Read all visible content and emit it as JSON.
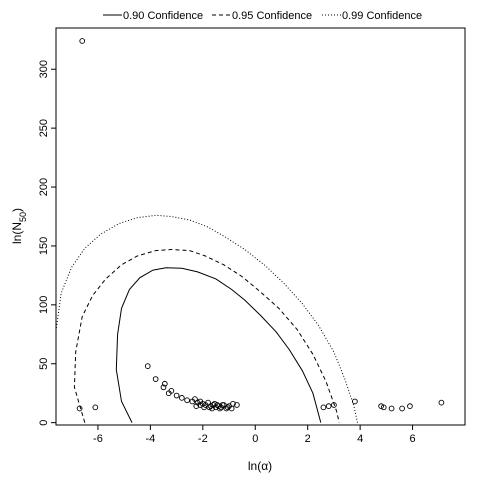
{
  "chart_data": {
    "type": "scatter",
    "xlabel": "ln(α)",
    "ylabel_main": "ln(N",
    "ylabel_sub": "50",
    "ylabel_close": ")",
    "xlim": [
      -7.6,
      8.0
    ],
    "ylim": [
      -2,
      335
    ],
    "x_ticks": [
      -6,
      -4,
      -2,
      0,
      2,
      4,
      6
    ],
    "x_tick_labels": [
      "-6",
      "-4",
      "-2",
      "0",
      "2",
      "4",
      "6"
    ],
    "y_ticks": [
      0,
      50,
      100,
      150,
      200,
      250,
      300
    ],
    "y_tick_labels": [
      "0",
      "50",
      "100",
      "150",
      "200",
      "250",
      "300"
    ],
    "legend": {
      "placement": "top",
      "entries": [
        {
          "label": "0.90 Confidence",
          "style": "solid"
        },
        {
          "label": "0.95 Confidence",
          "style": "dashed"
        },
        {
          "label": "0.99 Confidence",
          "style": "dotted"
        }
      ]
    },
    "series": [
      {
        "name": "0.90 Confidence",
        "style": "solid",
        "points": [
          [
            -4.7,
            0
          ],
          [
            -5.1,
            18
          ],
          [
            -5.3,
            45
          ],
          [
            -5.25,
            75
          ],
          [
            -5.1,
            97
          ],
          [
            -4.8,
            113
          ],
          [
            -4.4,
            123
          ],
          [
            -3.9,
            129.5
          ],
          [
            -3.4,
            131.5
          ],
          [
            -2.8,
            131
          ],
          [
            -2.2,
            128
          ],
          [
            -1.5,
            122
          ],
          [
            -0.9,
            113
          ],
          [
            -0.4,
            104
          ],
          [
            0.2,
            91
          ],
          [
            0.8,
            77
          ],
          [
            1.3,
            62
          ],
          [
            1.8,
            44
          ],
          [
            2.2,
            25
          ],
          [
            2.5,
            0
          ]
        ]
      },
      {
        "name": "0.95 Confidence",
        "style": "dashed",
        "points": [
          [
            -6.5,
            0
          ],
          [
            -6.9,
            30
          ],
          [
            -6.85,
            60
          ],
          [
            -6.6,
            90
          ],
          [
            -6.2,
            108
          ],
          [
            -5.7,
            122
          ],
          [
            -5.1,
            134
          ],
          [
            -4.5,
            141.5
          ],
          [
            -3.8,
            146
          ],
          [
            -3.2,
            147
          ],
          [
            -2.5,
            146
          ],
          [
            -1.9,
            141.5
          ],
          [
            -1.2,
            134
          ],
          [
            -0.5,
            124
          ],
          [
            0.2,
            111
          ],
          [
            0.9,
            97
          ],
          [
            1.6,
            79
          ],
          [
            2.2,
            58
          ],
          [
            2.7,
            35
          ],
          [
            3.1,
            10
          ],
          [
            3.2,
            0
          ]
        ]
      },
      {
        "name": "0.99 Confidence",
        "style": "dotted",
        "points": [
          [
            -7.6,
            78
          ],
          [
            -7.4,
            110
          ],
          [
            -7.0,
            132
          ],
          [
            -6.5,
            148
          ],
          [
            -5.9,
            160
          ],
          [
            -5.2,
            169
          ],
          [
            -4.5,
            174
          ],
          [
            -3.8,
            176
          ],
          [
            -3.2,
            175
          ],
          [
            -2.5,
            172
          ],
          [
            -1.8,
            166
          ],
          [
            -1.1,
            157
          ],
          [
            -0.4,
            147
          ],
          [
            0.4,
            133
          ],
          [
            1.1,
            118
          ],
          [
            1.8,
            101
          ],
          [
            2.4,
            83
          ],
          [
            3.0,
            60
          ],
          [
            3.4,
            38
          ],
          [
            3.75,
            15
          ],
          [
            3.9,
            0
          ]
        ]
      },
      {
        "name": "",
        "style": "points",
        "points": [
          [
            -6.6,
            324
          ],
          [
            -6.7,
            12
          ],
          [
            -6.1,
            13
          ],
          [
            -4.1,
            48
          ],
          [
            -3.8,
            37
          ],
          [
            -3.5,
            30
          ],
          [
            -3.45,
            33
          ],
          [
            -3.3,
            25
          ],
          [
            -3.2,
            27
          ],
          [
            -3.0,
            23
          ],
          [
            -2.8,
            21
          ],
          [
            -2.6,
            19
          ],
          [
            -2.4,
            18
          ],
          [
            -2.3,
            20
          ],
          [
            -2.2,
            17
          ],
          [
            -2.1,
            15
          ],
          [
            -2.0,
            16
          ],
          [
            -1.9,
            15
          ],
          [
            -1.8,
            17
          ],
          [
            -1.7,
            14
          ],
          [
            -1.6,
            15
          ],
          [
            -1.5,
            13
          ],
          [
            -1.4,
            14
          ],
          [
            -1.3,
            13
          ],
          [
            -1.2,
            15
          ],
          [
            -1.1,
            12
          ],
          [
            -1.0,
            14
          ],
          [
            -0.9,
            12
          ],
          [
            -0.7,
            15
          ],
          [
            -2.1,
            18
          ],
          [
            -1.95,
            13
          ],
          [
            -1.75,
            13
          ],
          [
            -1.55,
            16
          ],
          [
            -1.35,
            12
          ],
          [
            -1.25,
            15
          ],
          [
            -1.05,
            13
          ],
          [
            -0.85,
            16
          ],
          [
            -2.25,
            14
          ],
          [
            -1.65,
            12
          ],
          [
            -1.45,
            15
          ],
          [
            2.8,
            14
          ],
          [
            3.0,
            15
          ],
          [
            2.6,
            13
          ],
          [
            3.8,
            18
          ],
          [
            4.8,
            14
          ],
          [
            4.9,
            13
          ],
          [
            5.2,
            12
          ],
          [
            5.6,
            12
          ],
          [
            5.9,
            14
          ],
          [
            7.1,
            17
          ]
        ]
      }
    ]
  }
}
